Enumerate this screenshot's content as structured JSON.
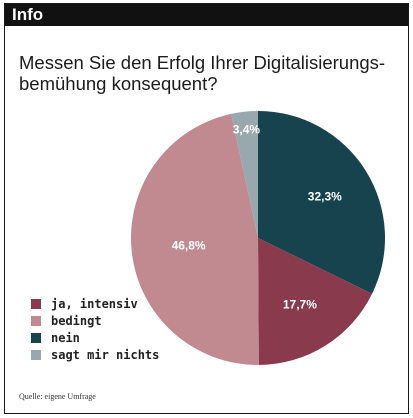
{
  "header": {
    "title": "Info"
  },
  "question": {
    "line1": "Messen Sie den Erfolg Ihrer Digitalisierungs-",
    "line2": "bemühung konsequent?"
  },
  "chart_data": {
    "type": "pie",
    "title": "Messen Sie den Erfolg Ihrer Digitalisierungsbemühung konsequent?",
    "slices": [
      {
        "label": "nein",
        "value": 32.3,
        "display": "32,3%",
        "color": "#16434d"
      },
      {
        "label": "ja, intensiv",
        "value": 17.7,
        "display": "17,7%",
        "color": "#8a3a4d"
      },
      {
        "label": "bedingt",
        "value": 46.8,
        "display": "46,8%",
        "color": "#c18a90"
      },
      {
        "label": "sagt mir nichts",
        "value": 3.4,
        "display": "3,4%",
        "color": "#99a8ae"
      }
    ],
    "start": "12 o'clock",
    "direction": "clockwise",
    "legend_position": "bottom-left"
  },
  "legend": [
    {
      "label": "ja, intensiv",
      "color": "#8a3a4d"
    },
    {
      "label": "bedingt",
      "color": "#c18a90"
    },
    {
      "label": "nein",
      "color": "#16434d"
    },
    {
      "label": "sagt mir nichts",
      "color": "#99a8ae"
    }
  ],
  "source": "Quelle: eigene Umfrage"
}
